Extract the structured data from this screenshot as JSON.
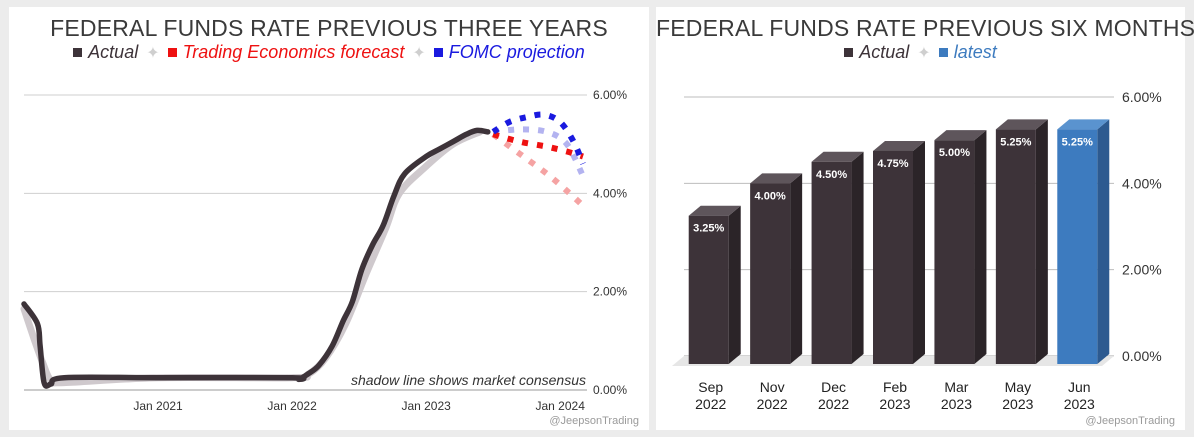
{
  "chart_data": [
    {
      "type": "line",
      "title": "FEDERAL FUNDS RATE PREVIOUS THREE YEARS",
      "legend": [
        {
          "label": "Actual",
          "color": "#3d3339"
        },
        {
          "label": "Trading Economics forecast",
          "color": "#ee1111"
        },
        {
          "label": "FOMC projection",
          "color": "#1a1adf"
        }
      ],
      "x_ticks": [
        "Jan 2021",
        "Jan 2022",
        "Jan 2023",
        "Jan 2024"
      ],
      "y_ticks": [
        "0.00%",
        "2.00%",
        "4.00%",
        "6.00%"
      ],
      "ylim": [
        0,
        6
      ],
      "xlim": [
        2020.0,
        2024.2
      ],
      "annotation": "shadow line shows market consensus",
      "series": [
        {
          "name": "Actual",
          "color": "#3d3339",
          "x": [
            2020.0,
            2020.1,
            2020.12,
            2020.15,
            2020.2,
            2020.3,
            2021.0,
            2022.0,
            2022.05,
            2022.12,
            2022.2,
            2022.3,
            2022.38,
            2022.45,
            2022.52,
            2022.6,
            2022.68,
            2022.76,
            2022.84,
            2023.0,
            2023.1,
            2023.2,
            2023.3,
            2023.38,
            2023.46
          ],
          "y": [
            1.75,
            1.35,
            0.9,
            0.15,
            0.12,
            0.25,
            0.25,
            0.25,
            0.22,
            0.33,
            0.5,
            0.9,
            1.4,
            1.8,
            2.45,
            2.95,
            3.35,
            3.95,
            4.4,
            4.75,
            4.9,
            5.05,
            5.2,
            5.28,
            5.25
          ]
        },
        {
          "name": "Market consensus",
          "color": "#cfc9cd",
          "x": [
            2020.0,
            2020.08,
            2020.14,
            2020.2,
            2020.3,
            2021.0,
            2022.0,
            2022.12,
            2022.25,
            2022.4,
            2022.55,
            2022.7,
            2022.8,
            2023.0,
            2023.2,
            2023.4
          ],
          "y": [
            1.65,
            1.0,
            0.55,
            0.2,
            0.15,
            0.25,
            0.25,
            0.32,
            0.65,
            1.35,
            2.35,
            3.3,
            4.0,
            4.55,
            5.0,
            5.25
          ]
        },
        {
          "name": "Trading Economics forecast",
          "color": "#ee1111",
          "x": [
            2023.5,
            2023.7,
            2023.9,
            2024.05,
            2024.17
          ],
          "y": [
            5.2,
            5.05,
            4.95,
            4.85,
            4.75
          ]
        },
        {
          "name": "Trading Economics consensus",
          "color": "#f5a3a3",
          "x": [
            2023.5,
            2023.7,
            2023.9,
            2024.05,
            2024.17
          ],
          "y": [
            5.2,
            4.8,
            4.4,
            4.05,
            3.75
          ]
        },
        {
          "name": "FOMC projection",
          "color": "#1a1adf",
          "x": [
            2023.5,
            2023.62,
            2023.75,
            2023.88,
            2024.0,
            2024.1,
            2024.17
          ],
          "y": [
            5.25,
            5.45,
            5.55,
            5.6,
            5.45,
            5.05,
            4.6
          ]
        },
        {
          "name": "FOMC consensus",
          "color": "#b3b3f0",
          "x": [
            2023.5,
            2023.7,
            2023.9,
            2024.05,
            2024.17
          ],
          "y": [
            5.25,
            5.3,
            5.25,
            5.0,
            4.35
          ]
        }
      ]
    },
    {
      "type": "bar",
      "title": "FEDERAL FUNDS RATE PREVIOUS SIX MONTHS",
      "legend": [
        {
          "label": "Actual",
          "color": "#3d3339"
        },
        {
          "label": "latest",
          "color": "#3d7bbf"
        }
      ],
      "categories": [
        [
          "Sep",
          "2022"
        ],
        [
          "Nov",
          "2022"
        ],
        [
          "Dec",
          "2022"
        ],
        [
          "Feb",
          "2023"
        ],
        [
          "Mar",
          "2023"
        ],
        [
          "May",
          "2023"
        ],
        [
          "Jun",
          "2023"
        ]
      ],
      "values": [
        3.25,
        4.0,
        4.5,
        4.75,
        5.0,
        5.25,
        5.25
      ],
      "value_labels": [
        "3.25%",
        "4.00%",
        "4.50%",
        "4.75%",
        "5.00%",
        "5.25%",
        "5.25%"
      ],
      "highlight": [
        false,
        false,
        false,
        false,
        false,
        false,
        true
      ],
      "y_ticks": [
        "0.00%",
        "2.00%",
        "4.00%",
        "6.00%"
      ],
      "ylim": [
        0,
        6
      ]
    }
  ],
  "credit": "@JeepsonTrading",
  "separator_glyph": "✦"
}
